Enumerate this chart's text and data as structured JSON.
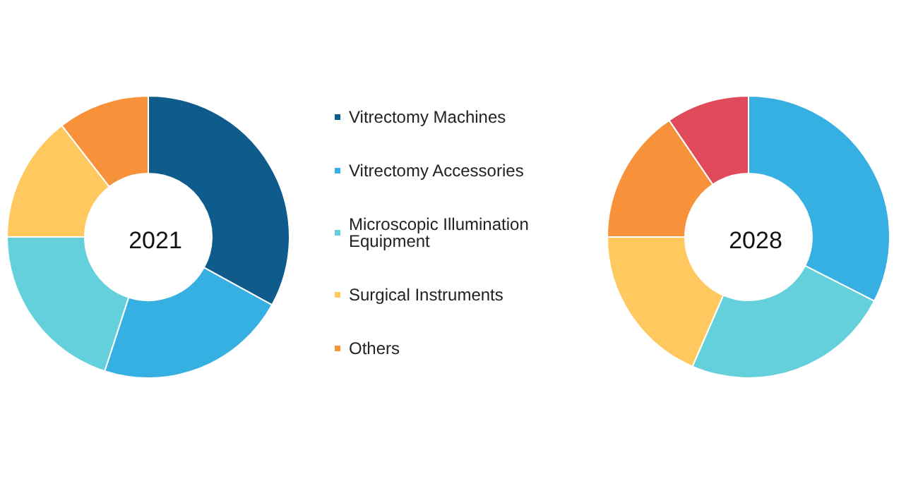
{
  "chart_data": [
    {
      "type": "donut",
      "title": "2021",
      "categories": [
        "Vitrectomy Machines",
        "Vitrectomy Accessories",
        "Microscopic Illumination Equipment",
        "Surgical Instruments",
        "Others"
      ],
      "values": [
        33,
        22,
        20,
        14.5,
        10.5
      ],
      "colors": [
        "#0f5b8c",
        "#36afe3",
        "#63d0dc",
        "#ffc95f",
        "#f7923a"
      ],
      "legend": "right"
    },
    {
      "type": "donut",
      "title": "2028",
      "categories": [
        null,
        null,
        null,
        null,
        null
      ],
      "values": [
        32.5,
        24,
        18.5,
        15.5,
        9.5
      ],
      "colors": [
        "#36afe3",
        "#63d0dc",
        "#ffc95f",
        "#f7923a",
        "#e04a5a"
      ]
    }
  ]
}
